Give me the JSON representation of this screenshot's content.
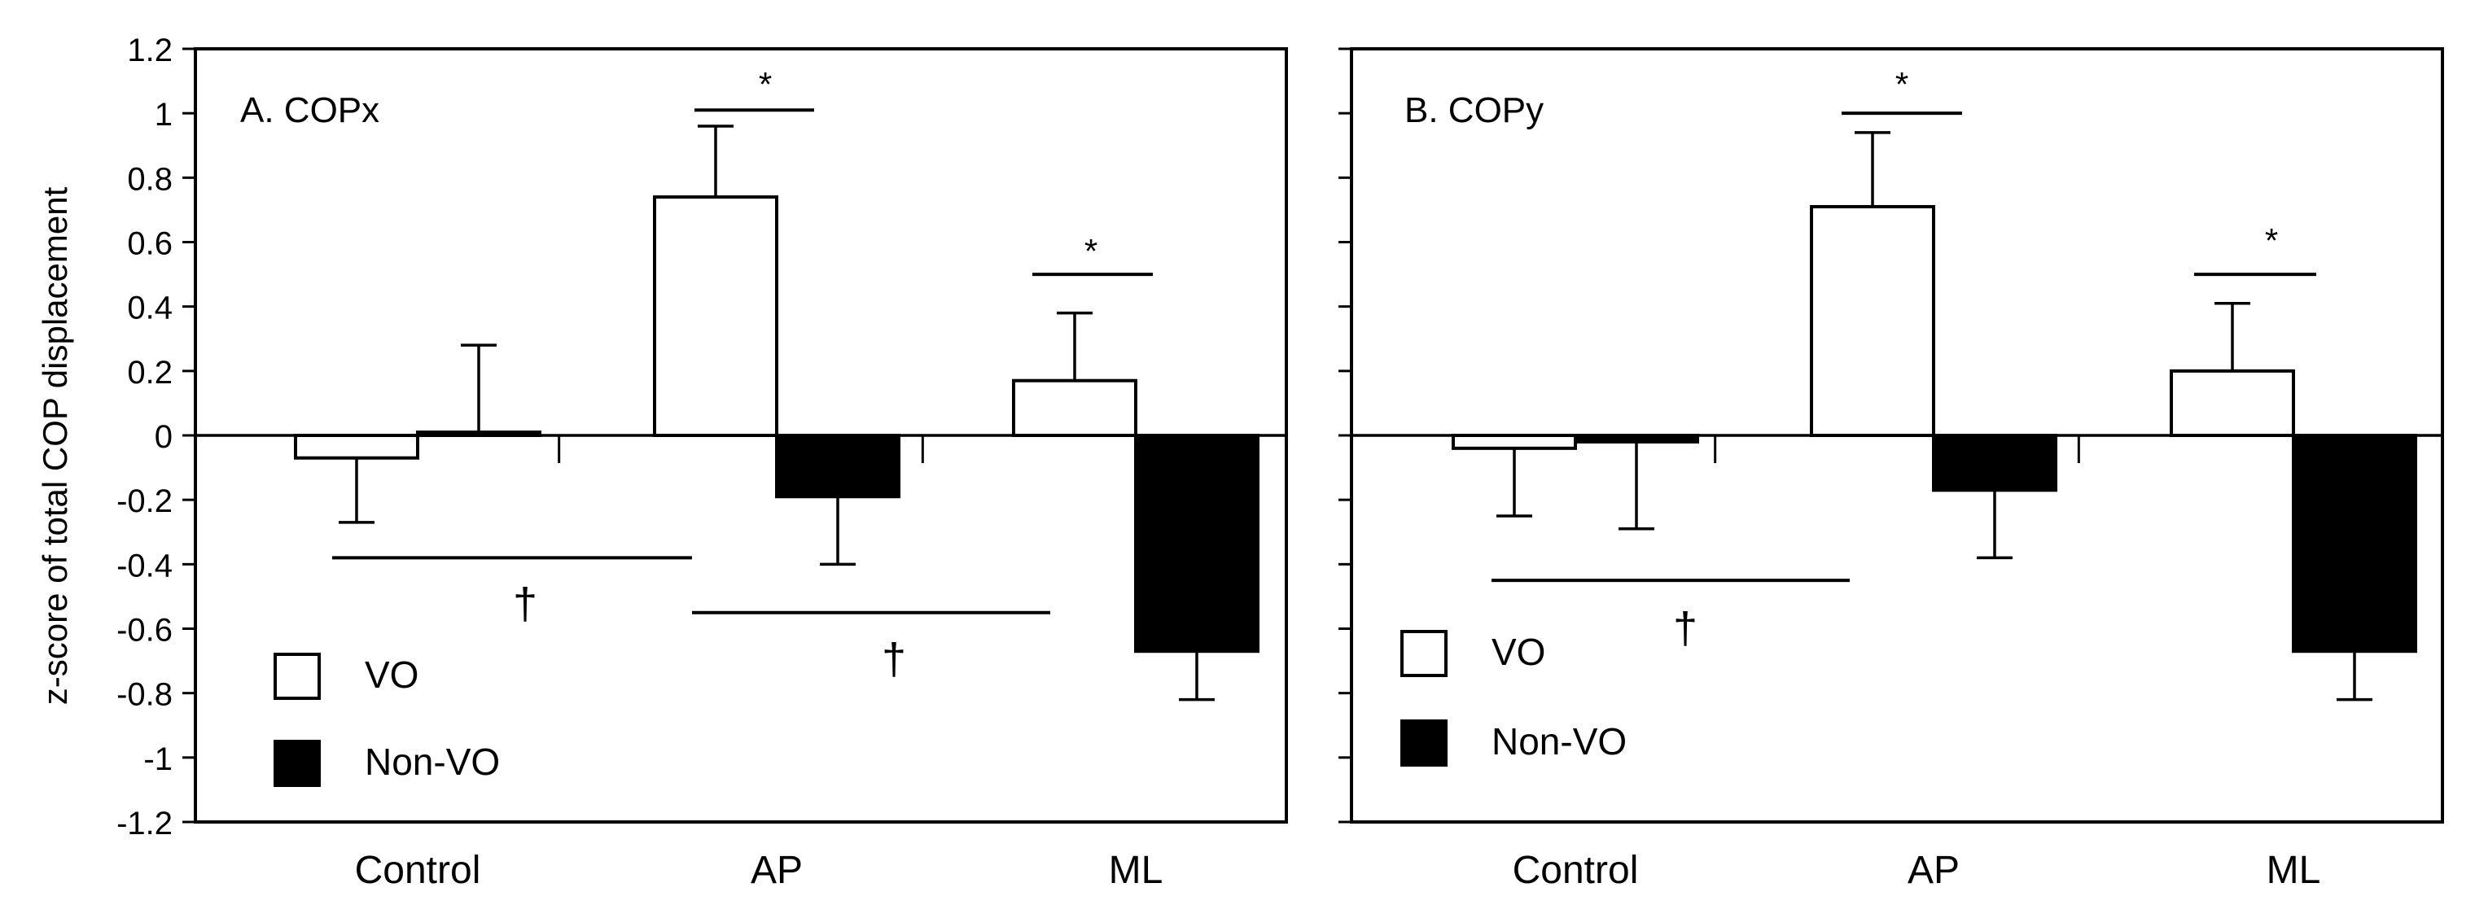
{
  "ylabel": "z-score of total COP displacement",
  "legend": {
    "vo": "VO",
    "nonvo": "Non-VO"
  },
  "colors": {
    "vo": "#ffffff",
    "nonvo": "#000000",
    "stroke": "#000000"
  },
  "chart_data": [
    {
      "type": "bar",
      "title": "A. COPx",
      "categories": [
        "Control",
        "AP",
        "ML"
      ],
      "ylabel": "z-score of total COP displacement",
      "ylim": [
        -1.2,
        1.2
      ],
      "yticks": [
        1.2,
        1,
        0.8,
        0.6,
        0.4,
        0.2,
        0,
        -0.2,
        -0.4,
        -0.6,
        -0.8,
        -1,
        -1.2
      ],
      "ytick_labels": [
        "1.2",
        "1",
        "0.8",
        "0.6",
        "0.4",
        "0.2",
        "0",
        "-0.2",
        "-0.4",
        "-0.6",
        "-0.8",
        "-1",
        "-1.2"
      ],
      "series": [
        {
          "name": "VO",
          "values": [
            -0.07,
            0.74,
            0.17
          ],
          "error": [
            0.2,
            0.22,
            0.21
          ]
        },
        {
          "name": "Non-VO",
          "values": [
            0.01,
            -0.19,
            -0.67
          ],
          "error": [
            0.27,
            0.21,
            0.15
          ]
        }
      ],
      "significance": [
        {
          "symbol": "*",
          "between": "VO vs Non-VO",
          "category": "AP",
          "y": 1.01
        },
        {
          "symbol": "*",
          "between": "VO vs Non-VO",
          "category": "ML",
          "y": 0.5
        },
        {
          "symbol": "†",
          "between": "Control vs AP",
          "y": -0.38
        },
        {
          "symbol": "†",
          "between": "AP vs ML",
          "y": -0.55
        }
      ],
      "legend_position": "bottom-left"
    },
    {
      "type": "bar",
      "title": "B. COPy",
      "categories": [
        "Control",
        "AP",
        "ML"
      ],
      "ylim": [
        -1.2,
        1.2
      ],
      "yticks": [
        1.2,
        1,
        0.8,
        0.6,
        0.4,
        0.2,
        0,
        -0.2,
        -0.4,
        -0.6,
        -0.8,
        -1,
        -1.2
      ],
      "ytick_labels": [],
      "series": [
        {
          "name": "VO",
          "values": [
            -0.04,
            0.71,
            0.2
          ],
          "error": [
            0.21,
            0.23,
            0.21
          ]
        },
        {
          "name": "Non-VO",
          "values": [
            -0.02,
            -0.17,
            -0.67
          ],
          "error": [
            0.27,
            0.21,
            0.15
          ]
        }
      ],
      "significance": [
        {
          "symbol": "*",
          "between": "VO vs Non-VO",
          "category": "AP",
          "y": 1.0
        },
        {
          "symbol": "*",
          "between": "VO vs Non-VO",
          "category": "ML",
          "y": 0.5
        },
        {
          "symbol": "†",
          "between": "Control vs AP",
          "y": -0.45
        }
      ],
      "legend_position": "bottom-left"
    }
  ]
}
